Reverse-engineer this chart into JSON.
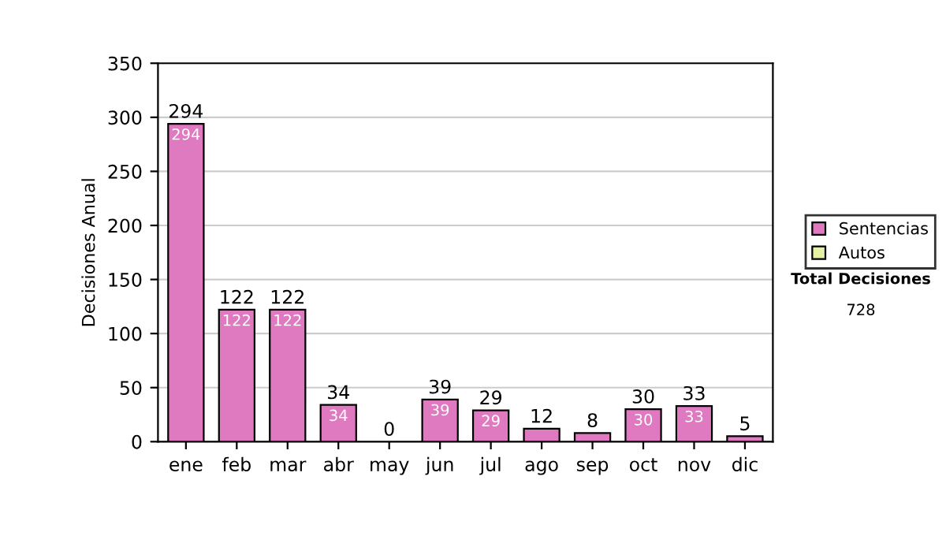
{
  "chart_data": {
    "type": "bar",
    "stacked": true,
    "ylabel": "Decisiones Anual",
    "categories": [
      "ene",
      "feb",
      "mar",
      "abr",
      "may",
      "jun",
      "jul",
      "ago",
      "sep",
      "oct",
      "nov",
      "dic"
    ],
    "series": [
      {
        "name": "Sentencias",
        "color": "#e07ac0",
        "values": [
          294,
          122,
          122,
          34,
          0,
          39,
          29,
          12,
          8,
          30,
          33,
          5
        ],
        "value_labels": [
          "294",
          "122",
          "122",
          "34",
          null,
          "39",
          "29",
          null,
          null,
          "30",
          "33",
          null
        ]
      },
      {
        "name": "Autos",
        "color": "#e8f0a8",
        "values": [
          0,
          0,
          0,
          0,
          0,
          0,
          0,
          0,
          0,
          0,
          0,
          0
        ]
      }
    ],
    "totals": [
      "294",
      "122",
      "122",
      "34",
      "0",
      "39",
      "29",
      "12",
      "8",
      "30",
      "33",
      "5"
    ],
    "ylim": [
      0,
      350
    ],
    "yticks": [
      0,
      50,
      100,
      150,
      200,
      250,
      300,
      350
    ],
    "grid": "y",
    "legend": "right",
    "annotations": [
      "Total Decisiones",
      "728"
    ]
  }
}
